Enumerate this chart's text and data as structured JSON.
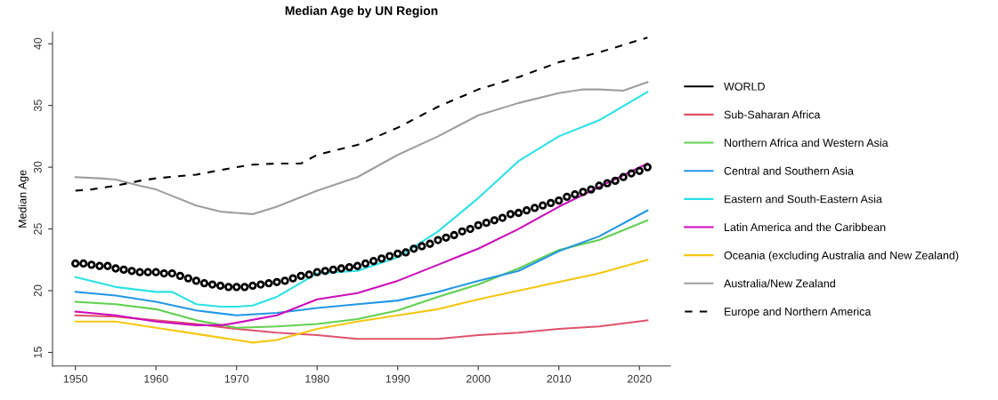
{
  "chart_data": {
    "type": "line",
    "title": "Median Age by UN Region",
    "ylabel": "Median Age",
    "xlim": [
      1947.16,
      2023.84
    ],
    "xticks": [
      1950,
      1960,
      1970,
      1980,
      1990,
      2000,
      2010,
      2020
    ],
    "ylim": [
      13.9,
      40.95
    ],
    "yticks": [
      15,
      20,
      25,
      30,
      35,
      40
    ],
    "grid": false,
    "legend": "right",
    "series": [
      {
        "name": "WORLD",
        "type": "scatter",
        "marker": "circle",
        "color": "#000000",
        "x": [
          1950,
          1951,
          1952,
          1953,
          1954,
          1955,
          1956,
          1957,
          1958,
          1959,
          1960,
          1961,
          1962,
          1963,
          1964,
          1965,
          1966,
          1967,
          1968,
          1969,
          1970,
          1971,
          1972,
          1973,
          1974,
          1975,
          1976,
          1977,
          1978,
          1979,
          1980,
          1981,
          1982,
          1983,
          1984,
          1985,
          1986,
          1987,
          1988,
          1989,
          1990,
          1991,
          1992,
          1993,
          1994,
          1995,
          1996,
          1997,
          1998,
          1999,
          2000,
          2001,
          2002,
          2003,
          2004,
          2005,
          2006,
          2007,
          2008,
          2009,
          2010,
          2011,
          2012,
          2013,
          2014,
          2015,
          2016,
          2017,
          2018,
          2019,
          2020,
          2021
        ],
        "values": [
          22.2,
          22.2,
          22.1,
          22.0,
          22.0,
          21.8,
          21.7,
          21.6,
          21.5,
          21.5,
          21.5,
          21.4,
          21.4,
          21.2,
          21.0,
          20.8,
          20.6,
          20.5,
          20.4,
          20.3,
          20.3,
          20.3,
          20.4,
          20.5,
          20.6,
          20.7,
          20.8,
          21.0,
          21.2,
          21.3,
          21.5,
          21.6,
          21.7,
          21.8,
          21.9,
          22.0,
          22.2,
          22.4,
          22.6,
          22.8,
          23.0,
          23.1,
          23.4,
          23.6,
          23.8,
          24.1,
          24.3,
          24.5,
          24.8,
          25.0,
          25.3,
          25.5,
          25.7,
          25.9,
          26.2,
          26.3,
          26.5,
          26.7,
          26.9,
          27.1,
          27.3,
          27.6,
          27.8,
          28.0,
          28.2,
          28.5,
          28.7,
          28.9,
          29.2,
          29.5,
          29.7,
          30.0
        ]
      },
      {
        "name": "Sub-Saharan Africa",
        "color": "#df536b",
        "x": [
          1950,
          1955,
          1960,
          1965,
          1970,
          1975,
          1980,
          1985,
          1990,
          1995,
          2000,
          2005,
          2010,
          2015,
          2021
        ],
        "values": [
          18.0,
          17.9,
          17.6,
          17.3,
          16.9,
          16.6,
          16.4,
          16.1,
          16.1,
          16.1,
          16.4,
          16.6,
          16.9,
          17.1,
          17.6
        ]
      },
      {
        "name": "Northern Africa and Western Asia",
        "color": "#61d04f",
        "x": [
          1950,
          1955,
          1960,
          1965,
          1970,
          1975,
          1980,
          1985,
          1990,
          1995,
          2000,
          2005,
          2010,
          2015,
          2021
        ],
        "values": [
          19.1,
          18.9,
          18.5,
          17.6,
          17.0,
          17.1,
          17.3,
          17.7,
          18.4,
          19.5,
          20.5,
          21.8,
          23.3,
          24.1,
          25.7
        ]
      },
      {
        "name": "Central and Southern Asia",
        "color": "#2297e6",
        "x": [
          1950,
          1955,
          1960,
          1965,
          1970,
          1975,
          1980,
          1985,
          1990,
          1995,
          2000,
          2005,
          2010,
          2015,
          2021
        ],
        "values": [
          19.9,
          19.6,
          19.1,
          18.4,
          18.0,
          18.2,
          18.6,
          18.9,
          19.2,
          19.9,
          20.8,
          21.6,
          23.2,
          24.4,
          26.5
        ]
      },
      {
        "name": "Eastern and South-Eastern Asia",
        "color": "#28e2e5",
        "x": [
          1950,
          1955,
          1960,
          1962,
          1965,
          1968,
          1970,
          1972,
          1975,
          1980,
          1985,
          1990,
          1995,
          2000,
          2005,
          2010,
          2015,
          2021
        ],
        "values": [
          21.1,
          20.3,
          19.9,
          19.9,
          18.9,
          18.7,
          18.7,
          18.8,
          19.5,
          21.4,
          21.6,
          22.7,
          24.8,
          27.5,
          30.5,
          32.5,
          33.8,
          36.1
        ]
      },
      {
        "name": "Latin America and the Caribbean",
        "color": "#cd0bbc",
        "x": [
          1950,
          1955,
          1960,
          1965,
          1968,
          1970,
          1975,
          1980,
          1985,
          1990,
          1995,
          2000,
          2005,
          2010,
          2015,
          2021
        ],
        "values": [
          18.3,
          18.0,
          17.5,
          17.2,
          17.2,
          17.4,
          18.0,
          19.3,
          19.8,
          20.8,
          22.1,
          23.4,
          25.0,
          26.8,
          28.4,
          30.3
        ]
      },
      {
        "name": "Oceania (excluding Australia and New Zealand)",
        "color": "#f5c710",
        "x": [
          1950,
          1955,
          1960,
          1965,
          1970,
          1972,
          1975,
          1980,
          1985,
          1990,
          1995,
          2000,
          2005,
          2010,
          2015,
          2021
        ],
        "values": [
          17.5,
          17.5,
          17.0,
          16.5,
          16.0,
          15.8,
          16.0,
          16.9,
          17.5,
          18.0,
          18.5,
          19.3,
          20.0,
          20.7,
          21.4,
          22.5
        ]
      },
      {
        "name": "Australia/New Zealand",
        "color": "#9e9e9e",
        "x": [
          1950,
          1953,
          1955,
          1958,
          1960,
          1965,
          1968,
          1970,
          1972,
          1975,
          1980,
          1985,
          1990,
          1995,
          2000,
          2005,
          2010,
          2013,
          2015,
          2018,
          2021
        ],
        "values": [
          29.2,
          29.1,
          29.0,
          28.5,
          28.2,
          26.9,
          26.4,
          26.3,
          26.2,
          26.8,
          28.1,
          29.2,
          31.0,
          32.5,
          34.2,
          35.2,
          36.0,
          36.3,
          36.3,
          36.2,
          36.9
        ]
      },
      {
        "name": "Europe and Northern America",
        "color": "#000000",
        "line_style": "dashed",
        "x": [
          1950,
          1952,
          1955,
          1958,
          1960,
          1965,
          1970,
          1972,
          1975,
          1978,
          1980,
          1985,
          1990,
          1995,
          2000,
          2005,
          2010,
          2015,
          2021
        ],
        "values": [
          28.1,
          28.2,
          28.5,
          28.9,
          29.1,
          29.4,
          30.0,
          30.2,
          30.3,
          30.3,
          31.0,
          31.8,
          33.2,
          34.9,
          36.3,
          37.3,
          38.5,
          39.3,
          40.5
        ]
      }
    ]
  }
}
